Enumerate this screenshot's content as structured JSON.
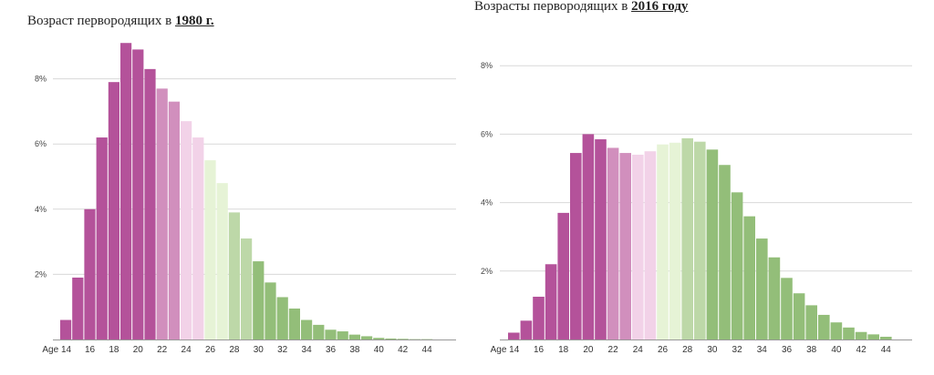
{
  "chart_data": [
    {
      "type": "bar",
      "title_prefix": "Возраст первородящих в ",
      "title_year": "1980 г.",
      "x": [
        14,
        15,
        16,
        17,
        18,
        19,
        20,
        21,
        22,
        23,
        24,
        25,
        26,
        27,
        28,
        29,
        30,
        31,
        32,
        33,
        34,
        35,
        36,
        37,
        38,
        39,
        40,
        41,
        42,
        43,
        44
      ],
      "values": [
        0.6,
        1.9,
        4.0,
        6.2,
        7.9,
        9.1,
        8.9,
        8.3,
        7.7,
        7.3,
        6.7,
        6.2,
        5.5,
        4.8,
        3.9,
        3.1,
        2.4,
        1.75,
        1.3,
        0.95,
        0.6,
        0.45,
        0.3,
        0.25,
        0.15,
        0.1,
        0.05,
        0.03,
        0.02,
        0.01,
        0.01
      ],
      "x_tick_labels": [
        "Age 14",
        "16",
        "18",
        "20",
        "22",
        "24",
        "26",
        "28",
        "30",
        "32",
        "34",
        "36",
        "38",
        "40",
        "42",
        "44"
      ],
      "y_ticks": [
        {
          "value": 2,
          "label": "2%"
        },
        {
          "value": 4,
          "label": "4%"
        },
        {
          "value": 6,
          "label": "6%"
        },
        {
          "value": 8,
          "label": "8%"
        }
      ],
      "ylim": [
        0,
        10
      ],
      "grid": true
    },
    {
      "type": "bar",
      "title_prefix": "Возрасты первородящих в ",
      "title_year": "2016 году",
      "x": [
        14,
        15,
        16,
        17,
        18,
        19,
        20,
        21,
        22,
        23,
        24,
        25,
        26,
        27,
        28,
        29,
        30,
        31,
        32,
        33,
        34,
        35,
        36,
        37,
        38,
        39,
        40,
        41,
        42,
        43,
        44
      ],
      "values": [
        0.2,
        0.55,
        1.25,
        2.2,
        3.7,
        5.45,
        6.0,
        5.85,
        5.6,
        5.45,
        5.4,
        5.5,
        5.7,
        5.75,
        5.88,
        5.78,
        5.55,
        5.1,
        4.3,
        3.6,
        2.95,
        2.4,
        1.8,
        1.35,
        1.0,
        0.72,
        0.5,
        0.35,
        0.22,
        0.15,
        0.08
      ],
      "x_tick_labels": [
        "Age 14",
        "16",
        "18",
        "20",
        "22",
        "24",
        "26",
        "28",
        "30",
        "32",
        "34",
        "36",
        "38",
        "40",
        "42",
        "44"
      ],
      "y_ticks": [
        {
          "value": 2,
          "label": "2%"
        },
        {
          "value": 4,
          "label": "4%"
        },
        {
          "value": 6,
          "label": "6%"
        },
        {
          "value": 8,
          "label": "8%"
        }
      ],
      "ylim": [
        0,
        10
      ],
      "grid": true
    }
  ],
  "colors": {
    "dark_magenta": "#b4529a",
    "mid_magenta": "#d18fbd",
    "light_pink": "#f2d2e8",
    "light_green": "#e6f3d6",
    "mid_green": "#bdd8a8",
    "green": "#93be79",
    "grid": "#d8d8d8"
  }
}
